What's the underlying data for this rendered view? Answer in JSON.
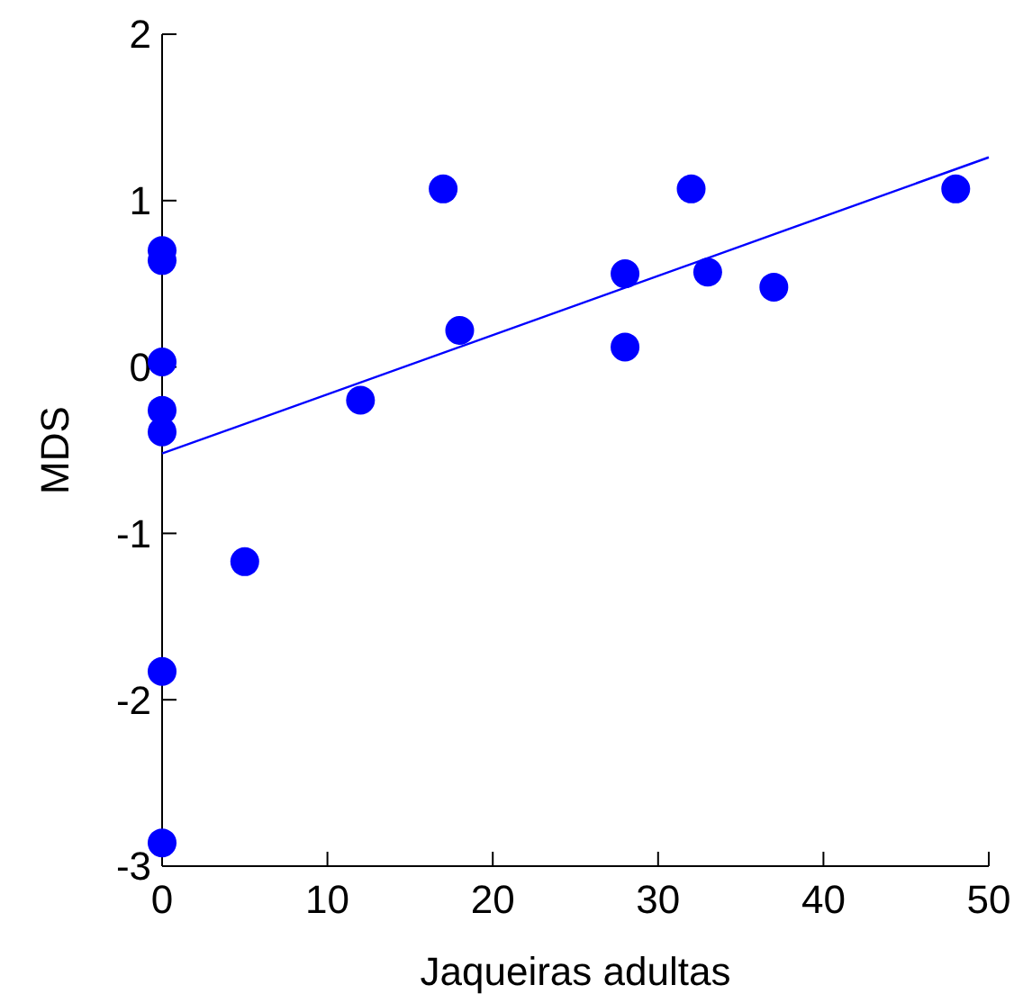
{
  "chart_data": {
    "type": "scatter",
    "xlabel": "Jaqueiras adultas",
    "ylabel": "MDS",
    "xlim": [
      0,
      50
    ],
    "ylim": [
      -3,
      2
    ],
    "xticks": [
      0,
      10,
      20,
      30,
      40,
      50
    ],
    "yticks": [
      -3,
      -2,
      -1,
      0,
      1,
      2
    ],
    "series": [
      {
        "color": "#0000ff",
        "marker": "circle",
        "x": [
          0,
          0,
          0,
          0,
          0,
          0,
          0,
          5,
          12,
          17,
          18,
          28,
          28,
          32,
          33,
          37,
          48
        ],
        "values": [
          0.7,
          0.03,
          -0.26,
          -0.39,
          -1.83,
          -2.86,
          0.64,
          -1.17,
          -0.2,
          1.07,
          0.22,
          0.56,
          0.12,
          1.07,
          0.57,
          0.48,
          1.07
        ]
      },
      {
        "type": "line",
        "color": "#0000ff",
        "marker": "none",
        "x": [
          0,
          50
        ],
        "values": [
          -0.52,
          1.26
        ]
      }
    ]
  }
}
